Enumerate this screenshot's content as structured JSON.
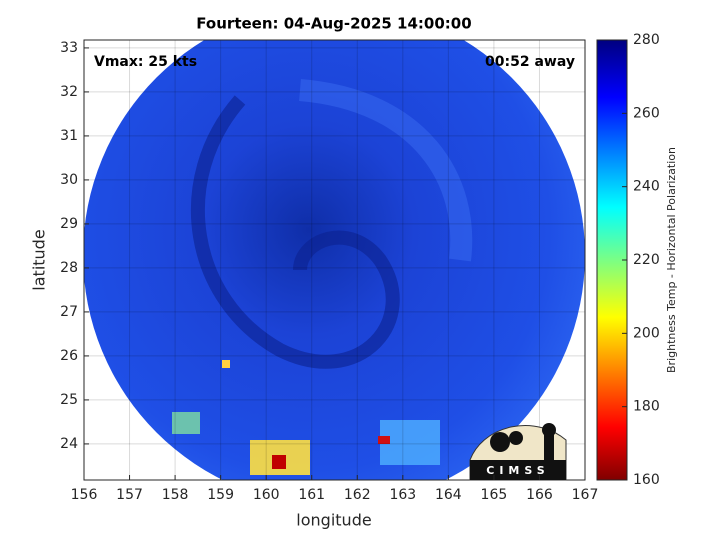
{
  "chart_data": {
    "type": "image",
    "title": "Fourteen: 04-Aug-2025 14:00:00",
    "xlabel": "longitude",
    "ylabel": "latitude",
    "annotations": [
      "Vmax: 25 kts",
      "00:52 away"
    ],
    "xlim": [
      156,
      167
    ],
    "xticks": [
      156,
      157,
      158,
      159,
      160,
      161,
      162,
      163,
      164,
      165,
      166,
      167
    ],
    "ylim": [
      23.18,
      33.18
    ],
    "yticks": [
      24,
      25,
      26,
      27,
      28,
      29,
      30,
      31,
      32,
      33
    ],
    "grid": true,
    "colorbar": {
      "label": "Brightness Temp - Horizontal Polarization",
      "lim": [
        160,
        280
      ],
      "ticks": [
        160,
        180,
        200,
        220,
        240,
        260,
        280
      ]
    },
    "logo": "CIMSS"
  }
}
